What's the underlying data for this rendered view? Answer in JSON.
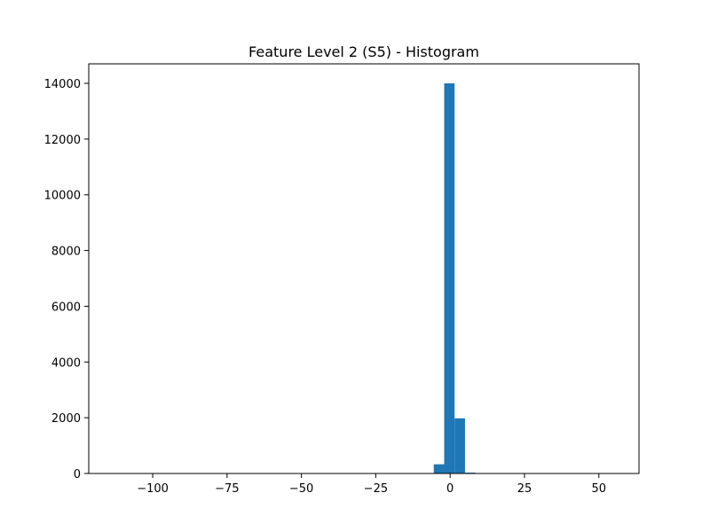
{
  "chart_data": {
    "type": "bar",
    "title": "Feature Level 2 (S5) - Histogram",
    "xlabel": "",
    "ylabel": "",
    "bar_color": "#1f77b4",
    "xlim": [
      -121.5,
      63.5
    ],
    "ylim": [
      0,
      14700
    ],
    "x_ticks": [
      -100,
      -75,
      -50,
      -25,
      0,
      25,
      50
    ],
    "x_tick_labels": [
      "−100",
      "−75",
      "−50",
      "−25",
      "0",
      "25",
      "50"
    ],
    "y_ticks": [
      0,
      2000,
      4000,
      6000,
      8000,
      10000,
      12000,
      14000
    ],
    "y_tick_labels": [
      "0",
      "2000",
      "4000",
      "6000",
      "8000",
      "10000",
      "12000",
      "14000"
    ],
    "grid": false,
    "legend": "none",
    "bins": [
      {
        "x0": -5.5,
        "x1": -2.0,
        "count": 330
      },
      {
        "x0": -2.0,
        "x1": 1.5,
        "count": 14000
      },
      {
        "x0": 1.5,
        "x1": 5.0,
        "count": 1980
      },
      {
        "x0": 5.0,
        "x1": 8.5,
        "count": 30
      }
    ]
  }
}
